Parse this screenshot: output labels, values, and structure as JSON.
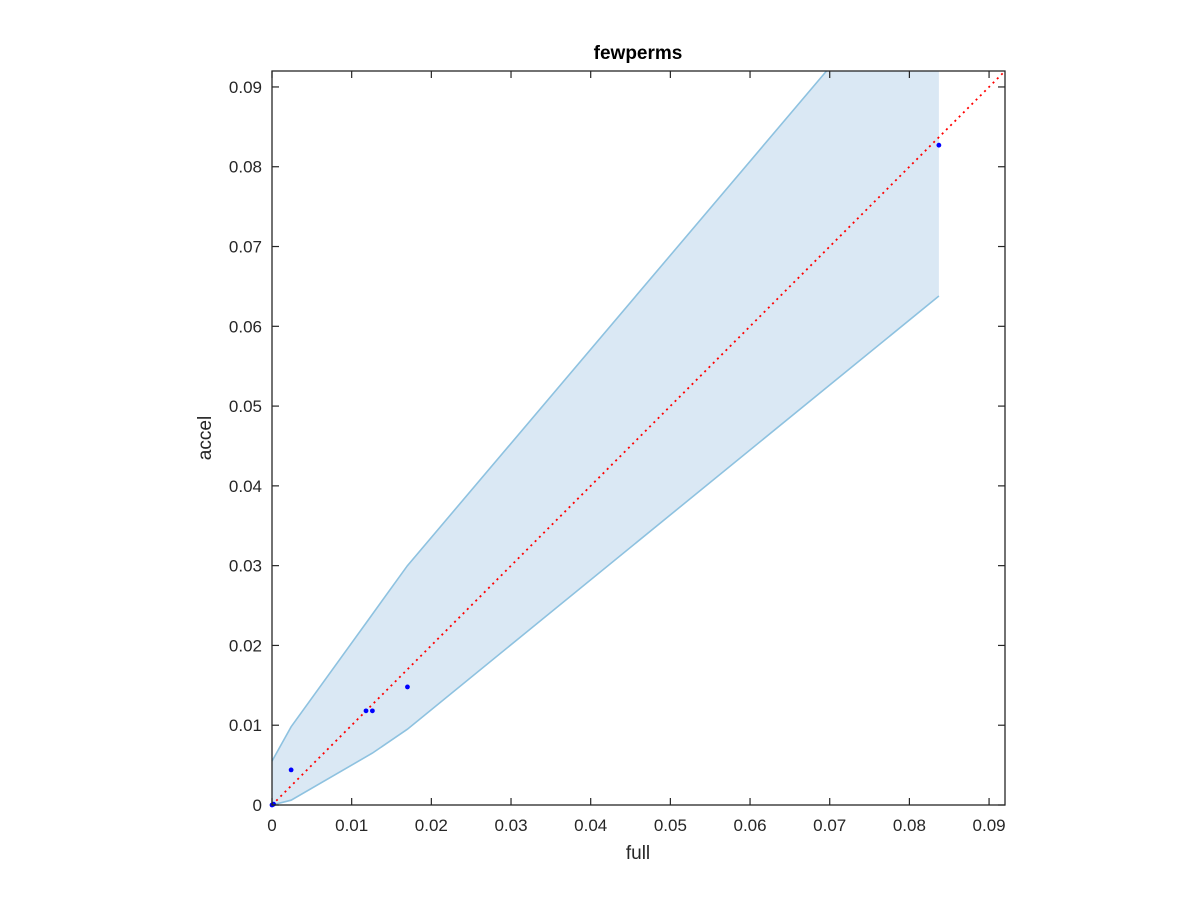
{
  "chart_data": {
    "type": "scatter",
    "title": "fewperms",
    "xlabel": "full",
    "ylabel": "accel",
    "xlim": [
      0,
      0.092
    ],
    "ylim": [
      0,
      0.092
    ],
    "xticks": [
      {
        "value": 0,
        "label": "0"
      },
      {
        "value": 0.01,
        "label": "0.01"
      },
      {
        "value": 0.02,
        "label": "0.02"
      },
      {
        "value": 0.03,
        "label": "0.03"
      },
      {
        "value": 0.04,
        "label": "0.04"
      },
      {
        "value": 0.05,
        "label": "0.05"
      },
      {
        "value": 0.06,
        "label": "0.06"
      },
      {
        "value": 0.07,
        "label": "0.07"
      },
      {
        "value": 0.08,
        "label": "0.08"
      },
      {
        "value": 0.09,
        "label": "0.09"
      }
    ],
    "yticks": [
      {
        "value": 0,
        "label": "0"
      },
      {
        "value": 0.01,
        "label": "0.01"
      },
      {
        "value": 0.02,
        "label": "0.02"
      },
      {
        "value": 0.03,
        "label": "0.03"
      },
      {
        "value": 0.04,
        "label": "0.04"
      },
      {
        "value": 0.05,
        "label": "0.05"
      },
      {
        "value": 0.06,
        "label": "0.06"
      },
      {
        "value": 0.07,
        "label": "0.07"
      },
      {
        "value": 0.08,
        "label": "0.08"
      },
      {
        "value": 0.09,
        "label": "0.09"
      }
    ],
    "grid": false,
    "points": [
      {
        "x": 0.0,
        "y": 0.0
      },
      {
        "x": 0.0002,
        "y": 0.0001
      },
      {
        "x": 0.0024,
        "y": 0.0044
      },
      {
        "x": 0.0118,
        "y": 0.0118
      },
      {
        "x": 0.0126,
        "y": 0.0118
      },
      {
        "x": 0.017,
        "y": 0.0148
      },
      {
        "x": 0.0837,
        "y": 0.0827
      }
    ],
    "band_upper": [
      {
        "x": 0.0,
        "y": 0.0055
      },
      {
        "x": 0.0024,
        "y": 0.0098
      },
      {
        "x": 0.0118,
        "y": 0.0228
      },
      {
        "x": 0.017,
        "y": 0.03
      },
      {
        "x": 0.0696,
        "y": 0.092
      },
      {
        "x": 0.0837,
        "y": 0.092
      }
    ],
    "band_lower": [
      {
        "x": 0.0,
        "y": 0.0
      },
      {
        "x": 0.0024,
        "y": 0.0006
      },
      {
        "x": 0.0126,
        "y": 0.0065
      },
      {
        "x": 0.017,
        "y": 0.0095
      },
      {
        "x": 0.0837,
        "y": 0.0638
      }
    ],
    "reference_line": {
      "from": [
        0,
        0
      ],
      "to": [
        0.092,
        0.092
      ],
      "style": "dotted"
    },
    "colors": {
      "band_fill": "#dae8f4",
      "band_edge": "#8ec2e0",
      "points": "#0000ff",
      "reference_line": "#ff0000",
      "axes": "#262626"
    }
  }
}
